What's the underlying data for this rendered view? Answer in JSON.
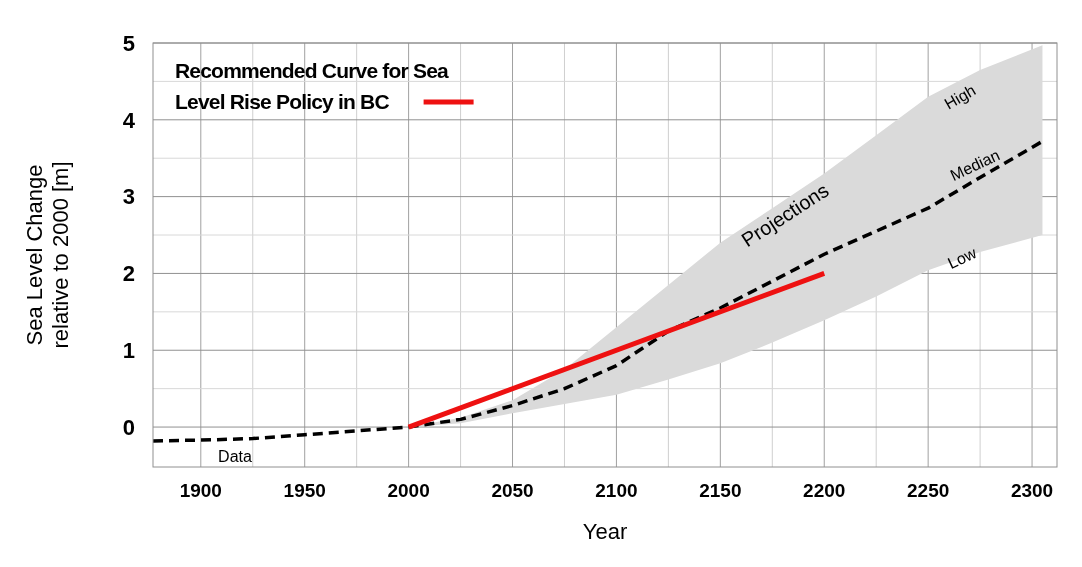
{
  "chart_data": {
    "type": "line",
    "xlabel": "Year",
    "ylabel": "Sea Level Change relative to 2000 [m]",
    "xlim": [
      1877,
      2312
    ],
    "ylim": [
      -0.52,
      5
    ],
    "xticks": [
      1900,
      {
        "value": 1925,
        "label": null
      },
      1950,
      {
        "value": 1975,
        "label": null
      },
      2000,
      {
        "value": 2025,
        "label": null
      },
      2050,
      {
        "value": 2075,
        "label": null
      },
      2100,
      {
        "value": 2125,
        "label": null
      },
      2150,
      {
        "value": 2175,
        "label": null
      },
      2200,
      {
        "value": 2225,
        "label": null
      },
      2250,
      {
        "value": 2275,
        "label": null
      },
      2300
    ],
    "yticks": [
      0,
      {
        "value": 0.5,
        "label": null
      },
      1,
      {
        "value": 1.5,
        "label": null
      },
      2,
      {
        "value": 2.5,
        "label": null
      },
      3,
      {
        "value": 3.5,
        "label": null
      },
      4,
      {
        "value": 4.5,
        "label": null
      },
      5
    ],
    "grid": true,
    "legend": "top left",
    "series": [
      {
        "color": "#000000",
        "line_style": "dashed",
        "x": [
          1877,
          1900,
          1925,
          1950,
          1975,
          2000,
          2025,
          2050,
          2075,
          2100,
          2125,
          2150,
          2175,
          2200,
          2225,
          2250,
          2275,
          2305
        ],
        "values": [
          -0.18,
          -0.17,
          -0.15,
          -0.1,
          -0.05,
          0,
          0.1,
          0.28,
          0.5,
          0.8,
          1.25,
          1.55,
          1.9,
          2.25,
          2.55,
          2.85,
          3.25,
          3.72
        ],
        "upper": [
          null,
          null,
          null,
          null,
          null,
          0,
          0.12,
          0.35,
          0.75,
          1.3,
          1.85,
          2.4,
          2.85,
          3.3,
          3.8,
          4.3,
          4.65,
          4.97
        ],
        "lower": [
          null,
          null,
          null,
          null,
          null,
          0,
          0.05,
          0.18,
          0.3,
          0.42,
          0.62,
          0.83,
          1.1,
          1.39,
          1.7,
          2.04,
          2.28,
          2.5
        ]
      },
      {
        "name": "Recommended Curve for Sea Level Rise Policy in BC",
        "color": "#ee1111",
        "line_style": "solid",
        "x": [
          2000,
          2200
        ],
        "values": [
          0,
          2
        ]
      }
    ],
    "annotations": [
      "Data",
      "Projections",
      "High",
      "Median",
      "Low"
    ]
  }
}
